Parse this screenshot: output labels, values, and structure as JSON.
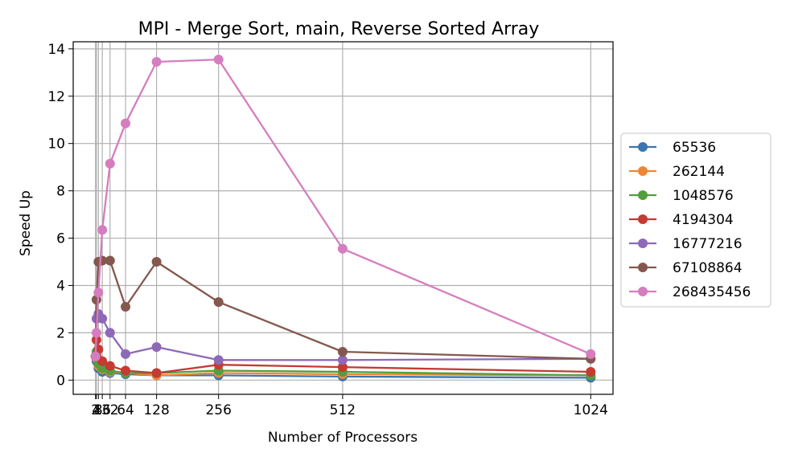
{
  "chart_data": {
    "type": "line",
    "title": "MPI - Merge Sort, main, Reverse Sorted Array",
    "xlabel": "Number of Processors",
    "ylabel": "Speed Up",
    "xlim": [
      -44,
      1070
    ],
    "ylim": [
      -0.6,
      14.3
    ],
    "xticks": [
      2,
      4,
      8,
      16,
      32,
      64,
      128,
      256,
      512,
      1024
    ],
    "xtick_labels": [
      "2",
      "4",
      "8",
      "16",
      "32",
      "64",
      "128",
      "256",
      "512",
      "1024"
    ],
    "yticks": [
      0,
      2,
      4,
      6,
      8,
      10,
      12,
      14
    ],
    "grid": true,
    "legend_position": "outside-right",
    "x": [
      2,
      4,
      8,
      16,
      32,
      64,
      128,
      256,
      512,
      1024
    ],
    "series": [
      {
        "name": "65536",
        "color": "#3b75af",
        "values": [
          1.0,
          0.8,
          0.5,
          0.35,
          0.3,
          0.25,
          0.2,
          0.2,
          0.15,
          0.1
        ]
      },
      {
        "name": "262144",
        "color": "#ef8636",
        "values": [
          1.0,
          0.9,
          0.6,
          0.45,
          0.35,
          0.3,
          0.2,
          0.3,
          0.25,
          0.2
        ]
      },
      {
        "name": "1048576",
        "color": "#519e3e",
        "values": [
          1.0,
          1.2,
          0.7,
          0.5,
          0.4,
          0.3,
          0.3,
          0.4,
          0.35,
          0.2
        ]
      },
      {
        "name": "4194304",
        "color": "#c53a32",
        "values": [
          1.0,
          1.7,
          1.3,
          0.8,
          0.6,
          0.4,
          0.3,
          0.65,
          0.55,
          0.35
        ]
      },
      {
        "name": "16777216",
        "color": "#8d69b8",
        "values": [
          1.0,
          2.6,
          2.8,
          2.6,
          2.0,
          1.1,
          1.4,
          0.85,
          0.85,
          0.9
        ]
      },
      {
        "name": "67108864",
        "color": "#84584e",
        "values": [
          1.0,
          3.4,
          5.0,
          5.05,
          5.05,
          3.1,
          5.0,
          3.3,
          1.2,
          0.9
        ]
      },
      {
        "name": "268435456",
        "color": "#d57dbf",
        "values": [
          1.0,
          2.0,
          3.7,
          6.35,
          9.15,
          10.85,
          13.45,
          13.55,
          5.55,
          1.1
        ]
      }
    ]
  }
}
